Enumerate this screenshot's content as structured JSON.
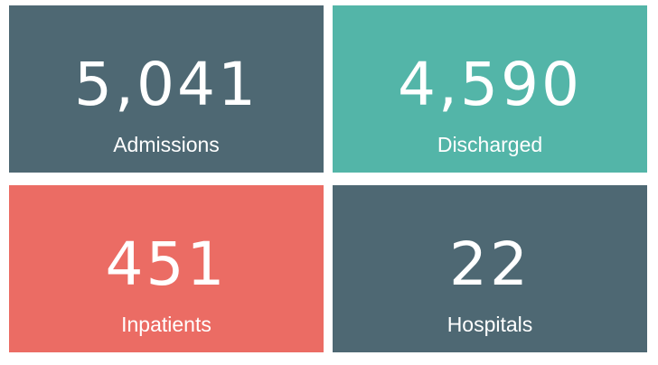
{
  "cards": [
    {
      "value": "5,041",
      "label": "Admissions",
      "color": "#4e6873"
    },
    {
      "value": "4,590",
      "label": "Discharged",
      "color": "#53b5a8"
    },
    {
      "value": "451",
      "label": "Inpatients",
      "color": "#eb6c64"
    },
    {
      "value": "22",
      "label": "Hospitals",
      "color": "#4e6873"
    }
  ]
}
